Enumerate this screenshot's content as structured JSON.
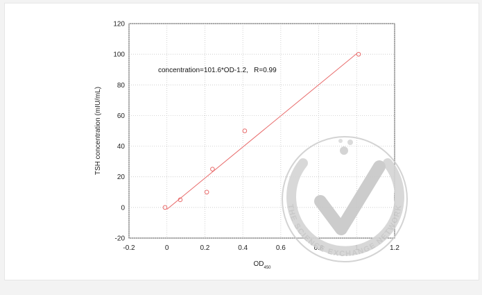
{
  "chart_data": {
    "type": "scatter",
    "xlabel": "OD",
    "xlabel_subscript": "450",
    "ylabel": "TSH concentration (mIU/mL)",
    "xlim": [
      -0.2,
      1.2
    ],
    "ylim": [
      -20,
      120
    ],
    "x_ticks": [
      "-0.2",
      "0",
      "0.2",
      "0.4",
      "0.6",
      "0.8",
      "1",
      "1.2"
    ],
    "y_ticks": [
      "-20",
      "0",
      "20",
      "40",
      "60",
      "80",
      "100",
      "120"
    ],
    "x_tick_values": [
      -0.2,
      0,
      0.2,
      0.4,
      0.6,
      0.8,
      1,
      1.2
    ],
    "y_tick_values": [
      -20,
      0,
      20,
      40,
      60,
      80,
      100,
      120
    ],
    "grid": true,
    "annotation": "concentration=101.6*OD-1.2,   R=0.99",
    "series": [
      {
        "marker": "open-circle",
        "color": "#e86a6a",
        "points": [
          {
            "x": -0.01,
            "y": 0
          },
          {
            "x": 0.07,
            "y": 5
          },
          {
            "x": 0.21,
            "y": 10
          },
          {
            "x": 0.24,
            "y": 25
          },
          {
            "x": 0.41,
            "y": 50
          },
          {
            "x": 1.01,
            "y": 100
          }
        ]
      }
    ],
    "fit_line": {
      "slope": 101.6,
      "intercept": -1.2,
      "x_range": [
        0,
        1.0
      ],
      "color": "#e86a6a"
    }
  },
  "watermark": {
    "text": "THE SCIENCE EXCHANGE NETWORK",
    "icon": "checkmark-badge-icon",
    "color": "#c9c9c9"
  }
}
